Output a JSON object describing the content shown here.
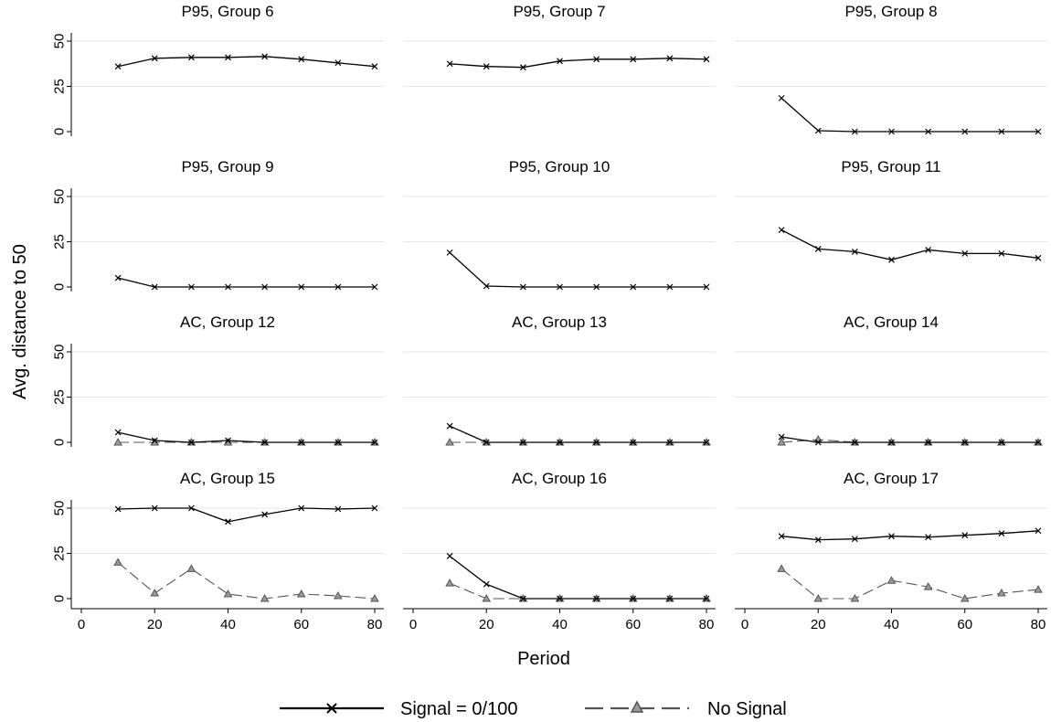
{
  "chart_data": {
    "type": "line",
    "ylabel": "Avg. distance to 50",
    "xlabel": "Period",
    "xlim": [
      0,
      80
    ],
    "ylim": [
      0,
      50
    ],
    "x_ticks": [
      0,
      20,
      40,
      60,
      80
    ],
    "y_ticks": [
      0,
      25,
      50
    ],
    "grid": "horizontal",
    "legend_position": "bottom",
    "legend": [
      {
        "label": "Signal = 0/100",
        "style": "solid",
        "marker": "x"
      },
      {
        "label": "No Signal",
        "style": "dashed",
        "marker": "triangle"
      }
    ],
    "colors": {
      "signal": "#000000",
      "no_signal": "#555555",
      "grid": "#e6e6e6",
      "axis": "#000000"
    },
    "x": [
      10,
      20,
      30,
      40,
      50,
      60,
      70,
      80
    ],
    "panels": [
      {
        "title": "P95, Group 6",
        "series": [
          {
            "name": "Signal = 0/100",
            "values": [
              36,
              40.5,
              41,
              41,
              41.5,
              40,
              38,
              36
            ]
          }
        ]
      },
      {
        "title": "P95, Group 7",
        "series": [
          {
            "name": "Signal = 0/100",
            "values": [
              37.5,
              36,
              35.5,
              39,
              40,
              40,
              40.5,
              40
            ]
          }
        ]
      },
      {
        "title": "P95, Group 8",
        "series": [
          {
            "name": "Signal = 0/100",
            "values": [
              18.5,
              0.5,
              0,
              0,
              0,
              0,
              0,
              0
            ]
          }
        ]
      },
      {
        "title": "P95, Group 9",
        "series": [
          {
            "name": "Signal = 0/100",
            "values": [
              5,
              0,
              0,
              0,
              0,
              0,
              0,
              0
            ]
          }
        ]
      },
      {
        "title": "P95, Group 10",
        "series": [
          {
            "name": "Signal = 0/100",
            "values": [
              19,
              0.5,
              0,
              0,
              0,
              0,
              0,
              0
            ]
          }
        ]
      },
      {
        "title": "P95, Group 11",
        "series": [
          {
            "name": "Signal = 0/100",
            "values": [
              31.5,
              21,
              19.5,
              15,
              20.5,
              18.5,
              18.5,
              16
            ]
          }
        ]
      },
      {
        "title": "AC, Group 12",
        "series": [
          {
            "name": "Signal = 0/100",
            "values": [
              5.5,
              1,
              0,
              1,
              0,
              0,
              0,
              0
            ]
          },
          {
            "name": "No Signal",
            "values": [
              0,
              0,
              0,
              0,
              0,
              0,
              0,
              0
            ]
          }
        ]
      },
      {
        "title": "AC, Group 13",
        "series": [
          {
            "name": "Signal = 0/100",
            "values": [
              9,
              0,
              0,
              0,
              0,
              0,
              0,
              0
            ]
          },
          {
            "name": "No Signal",
            "values": [
              0,
              0,
              0,
              0,
              0,
              0,
              0,
              0
            ]
          }
        ]
      },
      {
        "title": "AC, Group 14",
        "series": [
          {
            "name": "Signal = 0/100",
            "values": [
              3,
              0,
              0,
              0,
              0,
              0,
              0,
              0
            ]
          },
          {
            "name": "No Signal",
            "values": [
              0,
              1.5,
              0,
              0,
              0,
              0,
              0,
              0
            ]
          }
        ]
      },
      {
        "title": "AC, Group 15",
        "series": [
          {
            "name": "Signal = 0/100",
            "values": [
              49.5,
              50,
              50,
              42.5,
              46.5,
              50,
              49.5,
              50
            ]
          },
          {
            "name": "No Signal",
            "values": [
              20,
              3,
              16.5,
              2.5,
              0,
              2.5,
              1.5,
              0
            ]
          }
        ]
      },
      {
        "title": "AC, Group 16",
        "series": [
          {
            "name": "Signal = 0/100",
            "values": [
              23.5,
              8,
              0,
              0,
              0,
              0,
              0,
              0
            ]
          },
          {
            "name": "No Signal",
            "values": [
              8.5,
              0,
              0,
              0,
              0,
              0,
              0,
              0
            ]
          }
        ]
      },
      {
        "title": "AC, Group 17",
        "series": [
          {
            "name": "Signal = 0/100",
            "values": [
              34.5,
              32.5,
              33,
              34.5,
              34,
              35,
              36,
              37.5
            ]
          },
          {
            "name": "No Signal",
            "values": [
              16.5,
              0,
              0,
              10,
              6.5,
              0,
              3,
              5
            ]
          }
        ]
      }
    ]
  }
}
